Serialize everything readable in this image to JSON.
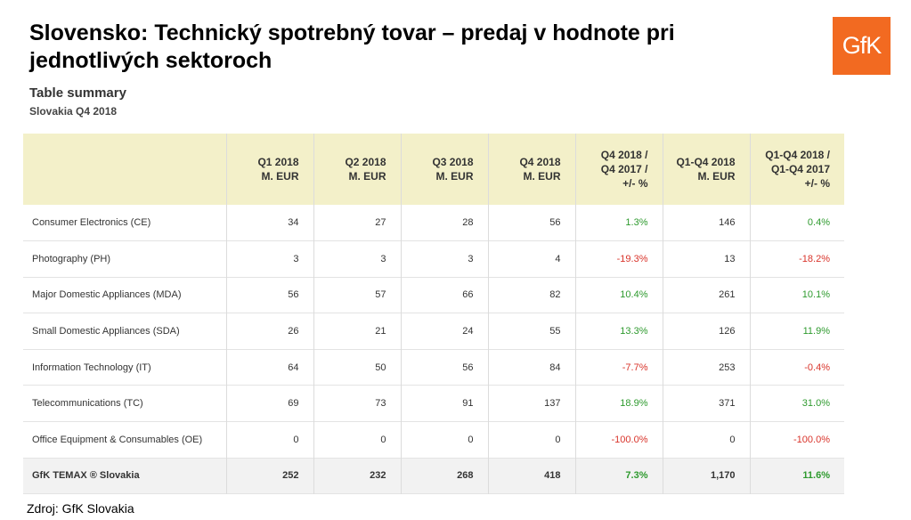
{
  "title": "Slovensko: Technický spotrebný tovar – predaj v hodnote pri jednotlivých sektoroch",
  "logo_text": "GfK",
  "summary": {
    "title": "Table summary",
    "subtitle": "Slovakia Q4 2018"
  },
  "table": {
    "headers": [
      "",
      "Q1 2018\nM. EUR",
      "Q2 2018\nM. EUR",
      "Q3 2018\nM. EUR",
      "Q4 2018\nM. EUR",
      "Q4 2018 /\nQ4 2017 /\n+/- %",
      "Q1-Q4 2018\nM. EUR",
      "Q1-Q4 2018 /\nQ1-Q4 2017\n+/- %"
    ],
    "rows": [
      {
        "label": "Consumer Electronics (CE)",
        "q1": "34",
        "q2": "27",
        "q3": "28",
        "q4": "56",
        "q4chg": "1.3%",
        "fy": "146",
        "fychg": "0.4%"
      },
      {
        "label": "Photography (PH)",
        "q1": "3",
        "q2": "3",
        "q3": "3",
        "q4": "4",
        "q4chg": "-19.3%",
        "fy": "13",
        "fychg": "-18.2%"
      },
      {
        "label": "Major Domestic Appliances (MDA)",
        "q1": "56",
        "q2": "57",
        "q3": "66",
        "q4": "82",
        "q4chg": "10.4%",
        "fy": "261",
        "fychg": "10.1%"
      },
      {
        "label": "Small Domestic Appliances (SDA)",
        "q1": "26",
        "q2": "21",
        "q3": "24",
        "q4": "55",
        "q4chg": "13.3%",
        "fy": "126",
        "fychg": "11.9%"
      },
      {
        "label": "Information Technology (IT)",
        "q1": "64",
        "q2": "50",
        "q3": "56",
        "q4": "84",
        "q4chg": "-7.7%",
        "fy": "253",
        "fychg": "-0.4%"
      },
      {
        "label": "Telecommunications (TC)",
        "q1": "69",
        "q2": "73",
        "q3": "91",
        "q4": "137",
        "q4chg": "18.9%",
        "fy": "371",
        "fychg": "31.0%"
      },
      {
        "label": "Office Equipment & Consumables (OE)",
        "q1": "0",
        "q2": "0",
        "q3": "0",
        "q4": "0",
        "q4chg": "-100.0%",
        "fy": "0",
        "fychg": "-100.0%"
      }
    ],
    "total": {
      "label": "GfK TEMAX ® Slovakia",
      "q1": "252",
      "q2": "232",
      "q3": "268",
      "q4": "418",
      "q4chg": "7.3%",
      "fy": "1,170",
      "fychg": "11.6%"
    }
  },
  "source": "Zdroj: GfK Slovakia",
  "colors": {
    "positive": "#2e9a2e",
    "negative": "#d9342b",
    "header_bg": "#f3f0c9",
    "logo_bg": "#f26a21"
  }
}
